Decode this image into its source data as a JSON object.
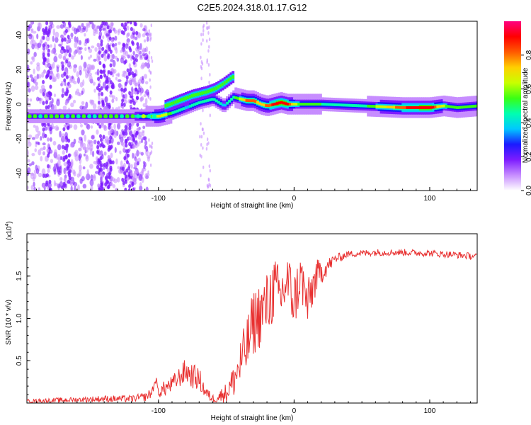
{
  "title": "C2E5.2024.318.01.17.G12",
  "chart_data": [
    {
      "type": "heatmap",
      "xlabel": "Height of straight line (km)",
      "ylabel": "Frequency (Hz)",
      "xlim": [
        -197,
        135
      ],
      "ylim": [
        -50,
        48
      ],
      "xticks": [
        -100,
        0,
        100
      ],
      "yticks": [
        -40,
        -20,
        0,
        20,
        40
      ],
      "xtick_labels": [
        "-100",
        "0",
        "100"
      ],
      "ytick_labels": [
        "-40",
        "-20",
        "0",
        "20",
        "40"
      ],
      "grid": false,
      "colorbar": {
        "label": "Normalized spectral amplitude",
        "range": [
          0,
          1
        ],
        "ticks": [
          0.0,
          0.2,
          0.4,
          0.6,
          0.8
        ],
        "tick_labels": [
          "0.0",
          "0.2",
          "0.4",
          "0.6",
          "0.8"
        ],
        "colors": [
          "#ffffff",
          "#c78dff",
          "#7d1cff",
          "#1a1aff",
          "#00c8ff",
          "#00ffb0",
          "#39ff14",
          "#c8ff00",
          "#ffd000",
          "#ff5a00",
          "#ff0000",
          "#ff0080"
        ]
      },
      "ridge": {
        "x": [
          -197,
          -150,
          -120,
          -100,
          -90,
          -80,
          -70,
          -60,
          -52,
          -45,
          -40,
          -35,
          -30,
          -25,
          -20,
          -15,
          -10,
          -5,
          0,
          20,
          50,
          80,
          100,
          110,
          120,
          135
        ],
        "y": [
          -7,
          -7,
          -7,
          -7,
          -5,
          -2,
          1,
          3,
          -1,
          4,
          3,
          2,
          2,
          0,
          -1,
          0,
          1,
          0,
          0,
          0,
          -1,
          -2,
          -2,
          -1,
          -2,
          -1
        ],
        "peak_amplitude": [
          0.3,
          0.3,
          0.3,
          0.7,
          0.5,
          0.4,
          0.45,
          0.45,
          0.4,
          0.5,
          0.6,
          0.8,
          0.8,
          0.7,
          0.8,
          0.9,
          0.95,
          0.9,
          0.6,
          0.5,
          0.45,
          0.85,
          0.95,
          0.6,
          0.5,
          0.5
        ]
      },
      "upper_branch": {
        "x": [
          -95,
          -85,
          -75,
          -65,
          -58,
          -52,
          -45
        ],
        "y": [
          -1,
          2,
          5,
          7,
          9,
          12,
          16
        ]
      }
    },
    {
      "type": "line",
      "xlabel": "Height of straight line (km)",
      "ylabel": "SNR (10 * v/v)",
      "scale_label": "(x10",
      "scale_exponent": "4",
      "xlim": [
        -197,
        135
      ],
      "ylim": [
        0,
        2.0
      ],
      "xticks": [
        -100,
        0,
        100
      ],
      "yticks": [
        0.5,
        1.0,
        1.5
      ],
      "xtick_labels": [
        "-100",
        "0",
        "100"
      ],
      "ytick_labels": [
        "0.5",
        "1.0",
        "1.5"
      ],
      "grid": false,
      "series": [
        {
          "color": "#e83030",
          "x": [
            -197,
            -180,
            -160,
            -140,
            -120,
            -110,
            -105,
            -102,
            -100,
            -95,
            -90,
            -85,
            -80,
            -75,
            -70,
            -65,
            -60,
            -55,
            -50,
            -45,
            -40,
            -35,
            -30,
            -25,
            -20,
            -15,
            -10,
            -5,
            0,
            5,
            10,
            15,
            20,
            25,
            30,
            40,
            60,
            80,
            100,
            120,
            135
          ],
          "y": [
            0.02,
            0.03,
            0.04,
            0.05,
            0.05,
            0.07,
            0.12,
            0.28,
            0.12,
            0.18,
            0.22,
            0.3,
            0.38,
            0.32,
            0.28,
            0.12,
            0.05,
            0.08,
            0.12,
            0.25,
            0.45,
            0.65,
            0.95,
            1.05,
            1.15,
            1.35,
            1.25,
            1.45,
            1.2,
            1.5,
            1.15,
            1.45,
            1.55,
            1.62,
            1.7,
            1.76,
            1.78,
            1.78,
            1.77,
            1.75,
            1.73
          ],
          "noise_amplitude": [
            0.02,
            0.03,
            0.03,
            0.04,
            0.04,
            0.05,
            0.06,
            0.05,
            0.06,
            0.1,
            0.1,
            0.12,
            0.15,
            0.15,
            0.14,
            0.08,
            0.05,
            0.08,
            0.12,
            0.2,
            0.3,
            0.35,
            0.4,
            0.4,
            0.4,
            0.4,
            0.35,
            0.35,
            0.35,
            0.3,
            0.3,
            0.25,
            0.15,
            0.1,
            0.06,
            0.04,
            0.04,
            0.04,
            0.04,
            0.04,
            0.04
          ]
        }
      ]
    }
  ]
}
